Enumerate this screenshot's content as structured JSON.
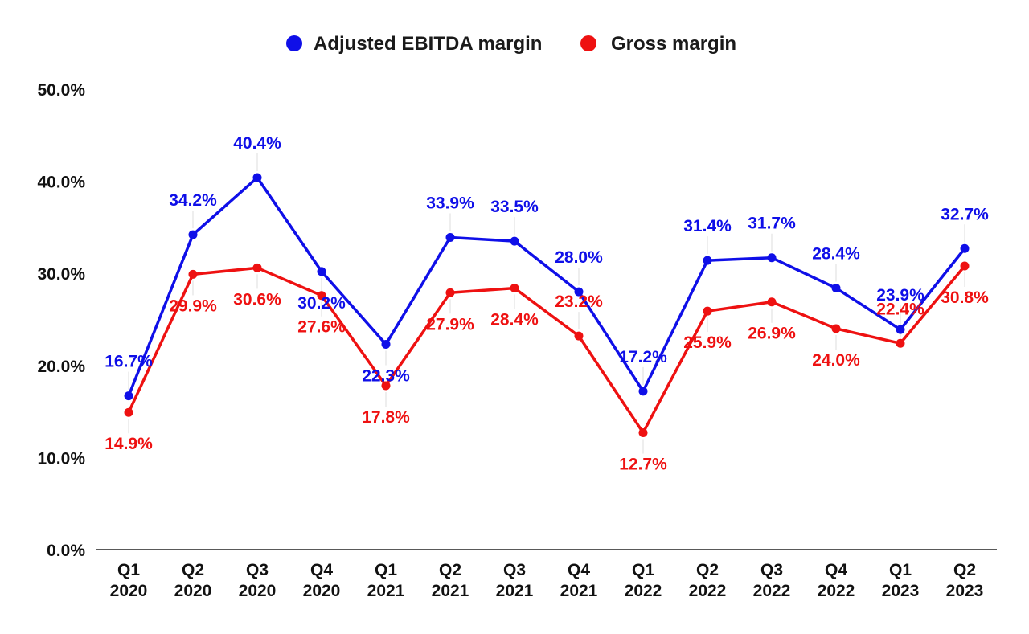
{
  "chart_data": {
    "type": "line",
    "categories": [
      [
        "Q1",
        "2020"
      ],
      [
        "Q2",
        "2020"
      ],
      [
        "Q3",
        "2020"
      ],
      [
        "Q4",
        "2020"
      ],
      [
        "Q1",
        "2021"
      ],
      [
        "Q2",
        "2021"
      ],
      [
        "Q3",
        "2021"
      ],
      [
        "Q4",
        "2021"
      ],
      [
        "Q1",
        "2022"
      ],
      [
        "Q2",
        "2022"
      ],
      [
        "Q3",
        "2022"
      ],
      [
        "Q4",
        "2022"
      ],
      [
        "Q1",
        "2023"
      ],
      [
        "Q2",
        "2023"
      ]
    ],
    "series": [
      {
        "name": "Adjusted EBITDA margin",
        "color": "#0f0fe8",
        "values": [
          16.7,
          34.2,
          40.4,
          30.2,
          22.3,
          33.9,
          33.5,
          28.0,
          17.2,
          31.4,
          31.7,
          28.4,
          23.9,
          32.7
        ],
        "labels": [
          "16.7%",
          "34.2%",
          "40.4%",
          "30.2%",
          "22.3%",
          "33.9%",
          "33.5%",
          "28.0%",
          "17.2%",
          "31.4%",
          "31.7%",
          "28.4%",
          "23.9%",
          "32.7%"
        ]
      },
      {
        "name": "Gross margin",
        "color": "#ee1111",
        "values": [
          14.9,
          29.9,
          30.6,
          27.6,
          17.8,
          27.9,
          28.4,
          23.2,
          12.7,
          25.9,
          26.9,
          24.0,
          22.4,
          30.8
        ],
        "labels": [
          "14.9%",
          "29.9%",
          "30.6%",
          "27.6%",
          "17.8%",
          "27.9%",
          "28.4%",
          "23.2%",
          "12.7%",
          "25.9%",
          "26.9%",
          "24.0%",
          "22.4%",
          "30.8%"
        ]
      }
    ],
    "yticks": [
      "0.0%",
      "10.0%",
      "20.0%",
      "30.0%",
      "40.0%",
      "50.0%"
    ],
    "ylim": [
      0,
      50
    ],
    "grid": false,
    "legend_position": "top-center",
    "title": "",
    "xlabel": "",
    "ylabel": ""
  }
}
